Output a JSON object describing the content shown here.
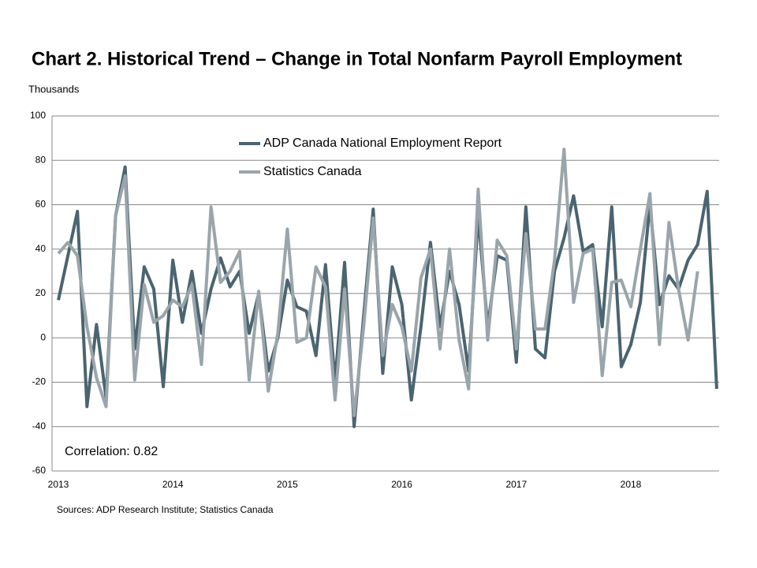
{
  "chart_data": {
    "type": "line",
    "title": "Chart 2. Historical Trend – Change in Total Nonfarm Payroll Employment",
    "y_label": "Thousands",
    "annotation": "Correlation: 0.82",
    "source": "Sources: ADP Research Institute; Statistics Canada",
    "categories": [
      "2013",
      null,
      null,
      null,
      null,
      null,
      null,
      null,
      null,
      null,
      null,
      null,
      "2014",
      null,
      null,
      null,
      null,
      null,
      null,
      null,
      null,
      null,
      null,
      null,
      "2015",
      null,
      null,
      null,
      null,
      null,
      null,
      null,
      null,
      null,
      null,
      null,
      "2016",
      null,
      null,
      null,
      null,
      null,
      null,
      null,
      null,
      null,
      null,
      null,
      "2017",
      null,
      null,
      null,
      null,
      null,
      null,
      null,
      null,
      null,
      null,
      null,
      "2018",
      null,
      null,
      null,
      null,
      null,
      null,
      null,
      null,
      null
    ],
    "series": [
      {
        "name": "ADP Canada National Employment Report",
        "color": "#4a6470",
        "values": [
          17,
          37,
          57,
          -31,
          6,
          -27,
          55,
          77,
          -5,
          32,
          22,
          -22,
          35,
          7,
          30,
          2,
          22,
          36,
          23,
          30,
          2,
          20,
          -15,
          0,
          26,
          14,
          12,
          -8,
          33,
          -20,
          34,
          -40,
          10,
          58,
          -16,
          32,
          15,
          -28,
          5,
          43,
          5,
          30,
          15,
          -15,
          55,
          5,
          37,
          35,
          -11,
          59,
          -5,
          -9,
          30,
          45,
          64,
          39,
          42,
          5,
          59,
          -13,
          -3,
          16,
          60,
          15,
          28,
          22,
          35,
          42,
          66,
          -23
        ]
      },
      {
        "name": "Statistics Canada",
        "color": "#9aa5ab",
        "values": [
          38,
          43,
          37,
          5,
          -18,
          -31,
          55,
          73,
          -19,
          24,
          7,
          10,
          17,
          14,
          24,
          -12,
          59,
          25,
          30,
          39,
          -19,
          21,
          -24,
          2,
          49,
          -2,
          0,
          32,
          23,
          -28,
          22,
          -35,
          5,
          54,
          -8,
          15,
          5,
          -15,
          27,
          40,
          -5,
          40,
          -1,
          -23,
          67,
          -1,
          44,
          37,
          -5,
          47,
          4,
          4,
          35,
          85,
          16,
          38,
          40,
          -17,
          25,
          26,
          14,
          40,
          65,
          -3,
          52,
          22,
          -1,
          30,
          null,
          null
        ]
      }
    ],
    "ylim": [
      -60,
      100
    ],
    "yticks": [
      -60,
      -40,
      -20,
      0,
      20,
      40,
      60,
      80,
      100
    ],
    "grid": true
  }
}
